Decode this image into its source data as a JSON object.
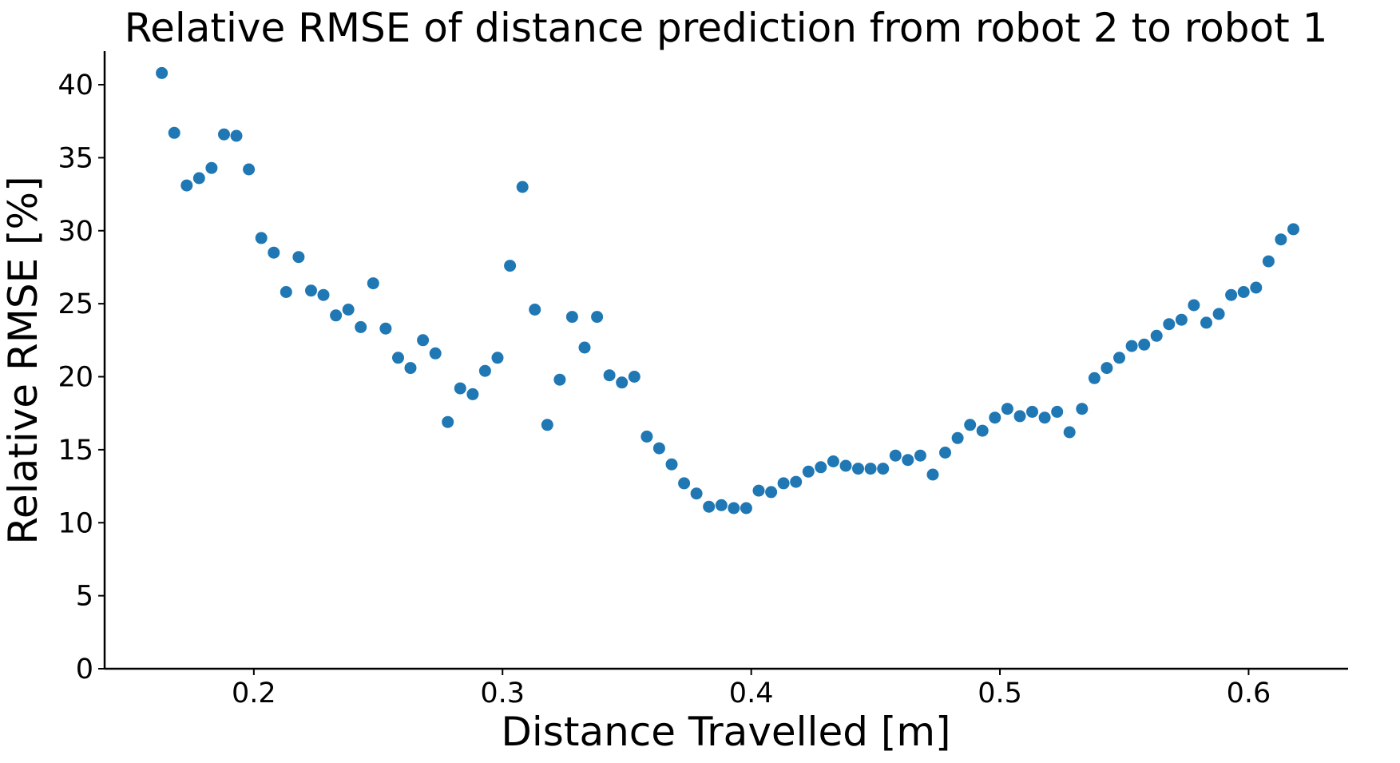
{
  "chart_data": {
    "type": "scatter",
    "title": "Relative RMSE of distance prediction from robot 2 to robot 1",
    "xlabel": "Distance Travelled [m]",
    "ylabel": "Relative RMSE [%]",
    "xlim": [
      0.14,
      0.64
    ],
    "ylim": [
      0,
      42.3
    ],
    "xticks": [
      "0.2",
      "0.3",
      "0.4",
      "0.5",
      "0.6"
    ],
    "yticks": [
      "0",
      "5",
      "10",
      "15",
      "20",
      "25",
      "30",
      "35",
      "40"
    ],
    "grid": false,
    "legend": "none",
    "marker_color": "#1f77b4",
    "series": [
      {
        "x": [
          0.163,
          0.168,
          0.173,
          0.178,
          0.183,
          0.188,
          0.193,
          0.198,
          0.203,
          0.208,
          0.213,
          0.218,
          0.223,
          0.228,
          0.233,
          0.238,
          0.243,
          0.248,
          0.253,
          0.258,
          0.263,
          0.268,
          0.273,
          0.278,
          0.283,
          0.288,
          0.293,
          0.298,
          0.303,
          0.308,
          0.313,
          0.318,
          0.323,
          0.328,
          0.333,
          0.338,
          0.343,
          0.348,
          0.353,
          0.358,
          0.363,
          0.368,
          0.373,
          0.378,
          0.383,
          0.388,
          0.393,
          0.398,
          0.403,
          0.408,
          0.413,
          0.418,
          0.423,
          0.428,
          0.433,
          0.438,
          0.443,
          0.448,
          0.453,
          0.458,
          0.463,
          0.468,
          0.473,
          0.478,
          0.483,
          0.488,
          0.493,
          0.498,
          0.503,
          0.508,
          0.513,
          0.518,
          0.523,
          0.528,
          0.533,
          0.538,
          0.543,
          0.548,
          0.553,
          0.558,
          0.563,
          0.568,
          0.573,
          0.578,
          0.583,
          0.588,
          0.593,
          0.598,
          0.603,
          0.608,
          0.613,
          0.618
        ],
        "y": [
          40.8,
          36.7,
          33.1,
          33.6,
          34.3,
          36.6,
          36.5,
          34.2,
          29.5,
          28.5,
          25.8,
          28.2,
          25.9,
          25.6,
          24.2,
          24.6,
          23.4,
          26.4,
          23.3,
          21.3,
          20.6,
          22.5,
          21.6,
          16.9,
          19.2,
          18.8,
          20.4,
          21.3,
          27.6,
          33.0,
          24.6,
          16.7,
          19.8,
          24.1,
          22.0,
          24.1,
          20.1,
          19.6,
          20.0,
          15.9,
          15.1,
          14.0,
          12.7,
          12.0,
          11.1,
          11.2,
          11.0,
          11.0,
          12.2,
          12.1,
          12.7,
          12.8,
          13.5,
          13.8,
          14.2,
          13.9,
          13.7,
          13.7,
          13.7,
          14.6,
          14.3,
          14.6,
          13.3,
          14.8,
          15.8,
          16.7,
          16.3,
          17.2,
          17.8,
          17.3,
          17.6,
          17.2,
          17.6,
          16.2,
          17.8,
          19.9,
          20.6,
          21.3,
          22.1,
          22.2,
          22.8,
          23.6,
          23.9,
          24.9,
          23.7,
          24.3,
          25.6,
          25.8,
          26.1,
          27.9,
          29.4,
          30.1
        ]
      }
    ]
  }
}
